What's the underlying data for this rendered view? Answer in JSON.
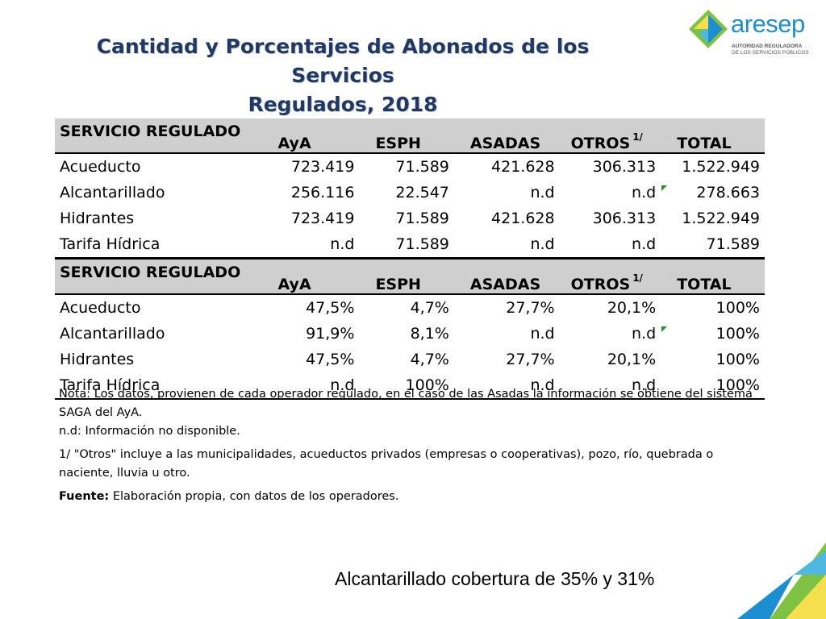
{
  "title": {
    "line1": "Cantidad y Porcentajes de Abonados de los Servicios",
    "line2": "Regulados, 2018"
  },
  "logo": {
    "word": "aresep",
    "sub1": "AUTORIDAD REGULADORA",
    "sub2": "DE LOS SERVICIOS PÚBLICOS"
  },
  "table1": {
    "headers": [
      "SERVICIO REGULADO",
      "AyA",
      "ESPH",
      "ASADAS",
      "OTROS",
      "TOTAL"
    ],
    "otros_sup": "1/",
    "rows": [
      [
        "Acueducto",
        "723.419",
        "71.589",
        "421.628",
        "306.313",
        "1.522.949"
      ],
      [
        "Alcantarillado",
        "256.116",
        "22.547",
        "n.d",
        "n.d",
        "278.663"
      ],
      [
        "Hidrantes",
        "723.419",
        "71.589",
        "421.628",
        "306.313",
        "1.522.949"
      ],
      [
        "Tarifa Hídrica",
        "n.d",
        "71.589",
        "n.d",
        "n.d",
        "71.589"
      ]
    ]
  },
  "table2": {
    "headers": [
      "SERVICIO REGULADO",
      "AyA",
      "ESPH",
      "ASADAS",
      "OTROS",
      "TOTAL"
    ],
    "otros_sup": "1/",
    "rows": [
      [
        "Acueducto",
        "47,5%",
        "4,7%",
        "27,7%",
        "20,1%",
        "100%"
      ],
      [
        "Alcantarillado",
        "91,9%",
        "8,1%",
        "n.d",
        "n.d",
        "100%"
      ],
      [
        "Hidrantes",
        "47,5%",
        "4,7%",
        "27,7%",
        "20,1%",
        "100%"
      ],
      [
        "Tarifa Hídrica",
        "n.d",
        "100%",
        "n.d",
        "n.d",
        "100%"
      ]
    ]
  },
  "notes": {
    "nota": "Nota: Los datos, provienen de cada operador regulado, en el caso de las Asadas la información se obtiene del sistema SAGA del AyA.",
    "nd": "n.d: Información no disponible.",
    "otros": "1/ \"Otros\" incluye a las municipalidades, acueductos privados (empresas o cooperativas), pozo, río, quebrada o naciente, lluvia u otro.",
    "fuente_label": "Fuente:",
    "fuente_text": " Elaboración propia, con datos de los operadores."
  },
  "bottom_note": "Alcantarillado cobertura de 35% y 31%",
  "colors": {
    "title": "#1f3864",
    "header_bg": "#cfcfcf",
    "logo_blue": "#1d8fd0",
    "logo_green": "#7dc242",
    "flag_green": "#2e8b2e"
  }
}
